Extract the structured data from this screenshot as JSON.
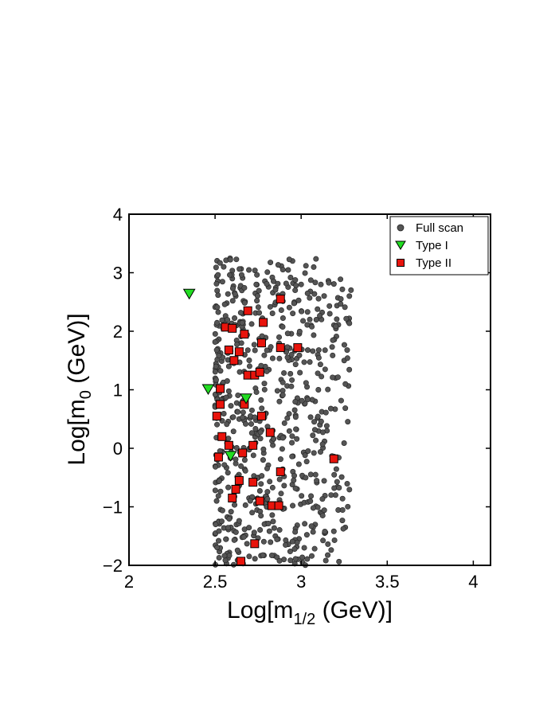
{
  "chart_data": {
    "type": "scatter",
    "xlabel_main": "Log[m",
    "xlabel_sub": "1/2",
    "xlabel_tail": " (GeV)]",
    "ylabel_main": "Log[m",
    "ylabel_sub": "0",
    "ylabel_tail": " (GeV)]",
    "xlim": [
      2,
      4.1
    ],
    "ylim": [
      -2,
      4
    ],
    "xticks": [
      2,
      2.5,
      3,
      3.5,
      4
    ],
    "xtick_labels": [
      "2",
      "2.5",
      "3",
      "3.5",
      "4"
    ],
    "yticks": [
      -2,
      -1,
      0,
      1,
      2,
      3,
      4
    ],
    "ytick_labels": [
      "−2",
      "−1",
      "0",
      "1",
      "2",
      "3",
      "4"
    ],
    "grid": false,
    "legend_position": "top-right",
    "series": [
      {
        "name": "Full scan",
        "marker": "circle",
        "color": "#555555",
        "x_range": [
          2.5,
          3.3
        ],
        "y_range": [
          -2,
          3.25
        ],
        "count": 700,
        "x": [
          2.55,
          2.6,
          2.62,
          2.58,
          2.64,
          2.7,
          2.75,
          2.8,
          2.85,
          2.9,
          2.95,
          3.0,
          3.05,
          3.1,
          3.15,
          3.2,
          3.25,
          3.28
        ],
        "y": [
          3.1,
          2.9,
          2.6,
          1.4,
          0.5,
          0.0,
          -0.5,
          -1.0,
          -1.5,
          -1.9,
          3.2,
          2.8,
          2.2,
          1.0,
          0.3,
          -0.8,
          1.5,
          2.6
        ]
      },
      {
        "name": "Type I",
        "marker": "triangle-down",
        "color": "#22dd22",
        "x": [
          2.35,
          2.46,
          2.59,
          2.68
        ],
        "y": [
          2.65,
          1.02,
          -0.12,
          0.86
        ]
      },
      {
        "name": "Type II",
        "marker": "square",
        "color": "#e8140c",
        "x": [
          2.88,
          2.69,
          2.78,
          2.56,
          2.6,
          2.67,
          2.58,
          2.64,
          2.61,
          2.88,
          2.98,
          2.77,
          2.69,
          2.73,
          2.76,
          2.53,
          2.53,
          2.67,
          2.51,
          2.77,
          2.54,
          2.82,
          2.58,
          2.72,
          2.66,
          2.52,
          3.19,
          2.88,
          2.64,
          2.72,
          2.62,
          2.6,
          2.83,
          2.87,
          2.76,
          2.73,
          2.65
        ],
        "y": [
          2.55,
          2.35,
          2.15,
          2.07,
          2.05,
          1.95,
          1.68,
          1.65,
          1.5,
          1.72,
          1.72,
          1.8,
          1.25,
          1.25,
          1.3,
          1.02,
          0.75,
          0.75,
          0.55,
          0.55,
          0.2,
          0.27,
          0.05,
          0.05,
          -0.08,
          -0.15,
          -0.18,
          -0.4,
          -0.55,
          -0.58,
          -0.7,
          -0.85,
          -0.98,
          -0.98,
          -0.9,
          -1.63,
          -1.93
        ]
      }
    ]
  }
}
